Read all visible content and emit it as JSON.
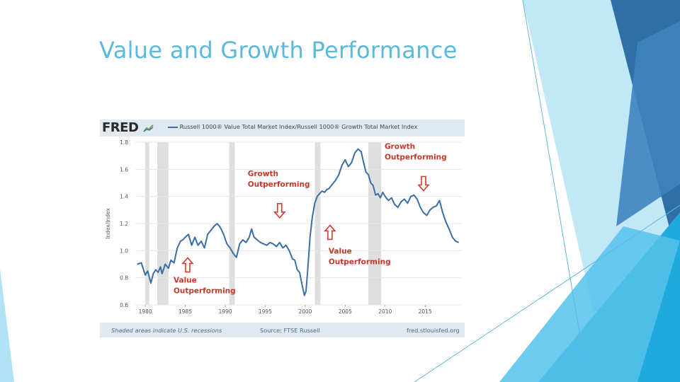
{
  "slide": {
    "title": "Value and Growth Performance"
  },
  "chart_header": {
    "logo": "FRED",
    "series_title": "Russell 1000® Value Total Market Index/Russell 1000® Growth Total Market Index"
  },
  "chart_footer": {
    "left": "Shaded areas indicate U.S. recessions",
    "source": "Source: FTSE Russell",
    "site": "fred.stlouisfed.org"
  },
  "colors": {
    "title": "#5ab9dc",
    "line": "#3a6ea5",
    "recession": "#dedede",
    "annotation_text": "#c0392b",
    "arrow": "#d63a2e",
    "decor_blue_dark": "#2f6fa5",
    "decor_blue_light": "#8fd4ef"
  },
  "chart_data": {
    "type": "line",
    "title": "Russell 1000® Value Total Market Index/Russell 1000® Growth Total Market Index",
    "xlabel": "",
    "ylabel": "Index/Index",
    "xlim": [
      1978.75,
      2019.5
    ],
    "ylim": [
      0.6,
      1.8
    ],
    "yticks": [
      0.6,
      0.8,
      1.0,
      1.2,
      1.4,
      1.6,
      1.8
    ],
    "xticks": [
      1980,
      1985,
      1990,
      1995,
      2000,
      2005,
      2010,
      2015
    ],
    "grid": true,
    "recessions": [
      [
        1980.0,
        1980.5
      ],
      [
        1981.5,
        1982.9
      ],
      [
        1990.5,
        1991.2
      ],
      [
        2001.2,
        2001.9
      ],
      [
        2007.9,
        2009.5
      ]
    ],
    "series": [
      {
        "name": "Russell 1000® Value Total Market Index/Russell 1000® Growth Total Market Index",
        "x": [
          1979.0,
          1979.5,
          1980.0,
          1980.3,
          1980.7,
          1981.0,
          1981.3,
          1981.6,
          1981.9,
          1982.1,
          1982.5,
          1982.9,
          1983.2,
          1983.6,
          1984.0,
          1984.4,
          1984.7,
          1985.0,
          1985.4,
          1985.8,
          1986.2,
          1986.6,
          1987.0,
          1987.4,
          1987.8,
          1988.2,
          1988.6,
          1989.0,
          1989.4,
          1989.8,
          1990.2,
          1990.6,
          1991.0,
          1991.4,
          1991.8,
          1992.2,
          1992.6,
          1993.0,
          1993.3,
          1993.6,
          1994.0,
          1994.4,
          1994.8,
          1995.2,
          1995.6,
          1996.0,
          1996.4,
          1996.8,
          1997.2,
          1997.6,
          1998.0,
          1998.4,
          1998.7,
          1999.0,
          1999.3,
          1999.6,
          1999.9,
          2000.1,
          2000.3,
          2000.6,
          2000.9,
          2001.2,
          2001.5,
          2001.8,
          2002.1,
          2002.4,
          2002.7,
          2003.0,
          2003.4,
          2003.8,
          2004.2,
          2004.6,
          2005.0,
          2005.4,
          2005.8,
          2006.2,
          2006.6,
          2007.0,
          2007.3,
          2007.6,
          2007.9,
          2008.2,
          2008.5,
          2008.8,
          2009.1,
          2009.4,
          2009.7,
          2010.0,
          2010.4,
          2010.8,
          2011.2,
          2011.6,
          2012.0,
          2012.4,
          2012.8,
          2013.2,
          2013.6,
          2014.0,
          2014.4,
          2014.8,
          2015.2,
          2015.6,
          2016.0,
          2016.4,
          2016.8,
          2017.2,
          2017.6,
          2018.0,
          2018.4,
          2018.8,
          2019.2
        ],
        "values": [
          0.9,
          0.91,
          0.82,
          0.85,
          0.76,
          0.83,
          0.86,
          0.84,
          0.88,
          0.83,
          0.9,
          0.87,
          0.93,
          0.91,
          1.02,
          1.07,
          1.08,
          1.1,
          1.12,
          1.04,
          1.1,
          1.04,
          1.07,
          1.02,
          1.12,
          1.15,
          1.18,
          1.2,
          1.17,
          1.12,
          1.05,
          1.02,
          0.98,
          0.95,
          1.05,
          1.08,
          1.06,
          1.1,
          1.16,
          1.1,
          1.08,
          1.06,
          1.05,
          1.04,
          1.06,
          1.05,
          1.03,
          1.06,
          1.02,
          1.04,
          1.0,
          0.94,
          0.93,
          0.86,
          0.84,
          0.75,
          0.67,
          0.7,
          0.85,
          1.1,
          1.25,
          1.35,
          1.4,
          1.42,
          1.44,
          1.43,
          1.45,
          1.46,
          1.49,
          1.52,
          1.56,
          1.63,
          1.67,
          1.62,
          1.65,
          1.72,
          1.75,
          1.73,
          1.65,
          1.58,
          1.56,
          1.5,
          1.48,
          1.41,
          1.42,
          1.39,
          1.43,
          1.4,
          1.37,
          1.39,
          1.34,
          1.32,
          1.36,
          1.38,
          1.35,
          1.4,
          1.41,
          1.38,
          1.32,
          1.28,
          1.26,
          1.3,
          1.32,
          1.33,
          1.37,
          1.28,
          1.21,
          1.16,
          1.1,
          1.07,
          1.06
        ]
      }
    ],
    "annotations": [
      {
        "label_line1": "Value",
        "label_line2": "Outperforming",
        "arrow": "up",
        "x": 1985.3,
        "y": 0.89
      },
      {
        "label_line1": "Growth",
        "label_line2": "Outperforming",
        "arrow": "down",
        "x": 1996.8,
        "y": 1.3
      },
      {
        "label_line1": "Value",
        "label_line2": "Outperforming",
        "arrow": "up",
        "x": 2003.1,
        "y": 1.13
      },
      {
        "label_line1": "Growth",
        "label_line2": "Outperforming",
        "arrow": "down",
        "x": 2014.8,
        "y": 1.5
      }
    ]
  }
}
